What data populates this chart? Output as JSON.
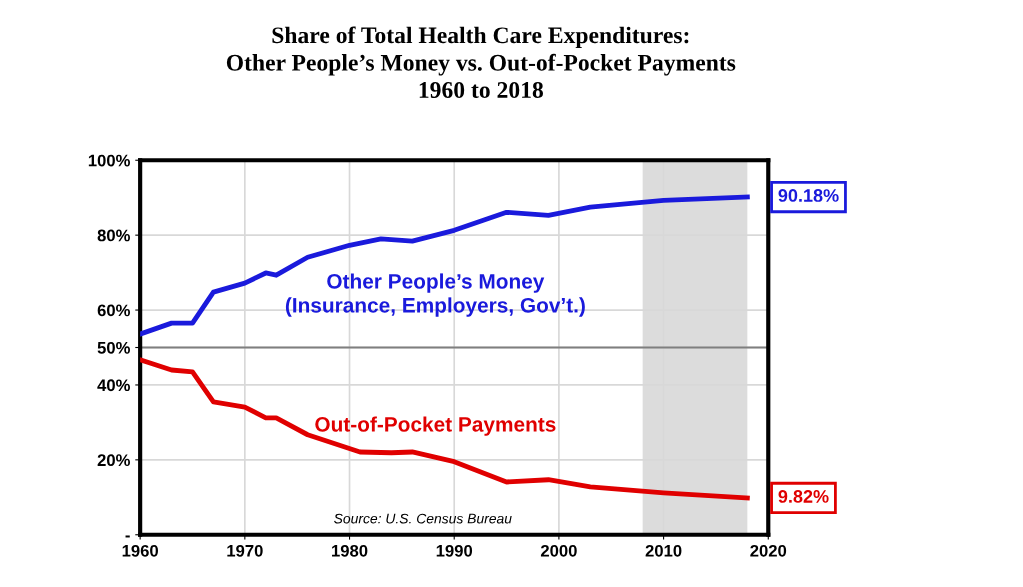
{
  "chart_data": {
    "type": "line",
    "title": "Share of Total Health Care Expenditures:\nOther People’s Money vs. Out-of-Pocket Payments\n1960 to 2018",
    "series": [
      {
        "name": "Other People’s Money\n(Insurance, Employers, Gov’t.)",
        "color": "#1a1adc",
        "x": [
          1960,
          1963,
          1965,
          1967,
          1970,
          1972,
          1973,
          1976,
          1980,
          1983,
          1986,
          1990,
          1995,
          1999,
          2003,
          2010,
          2018
        ],
        "values": [
          53.6,
          56.5,
          56.5,
          64.8,
          67.2,
          69.9,
          69.3,
          74.1,
          77.3,
          79,
          78.4,
          81.3,
          86.1,
          85.3,
          87.5,
          89.3,
          90.18
        ],
        "value_labels": [
          null,
          null,
          null,
          null,
          null,
          null,
          null,
          null,
          null,
          null,
          null,
          null,
          null,
          null,
          null,
          null,
          "90.18%"
        ]
      },
      {
        "name": "Out-of-Pocket Payments",
        "color": "#e00000",
        "x": [
          1960,
          1963,
          1965,
          1967,
          1970,
          1972,
          1973,
          1976,
          1981,
          1984,
          1986,
          1990,
          1995,
          1999,
          2003,
          2010,
          2018
        ],
        "values": [
          46.7,
          44,
          43.5,
          35.5,
          34.1,
          31.2,
          31.2,
          26.7,
          22.1,
          21.9,
          22.1,
          19.5,
          14.1,
          14.7,
          12.8,
          11.2,
          9.82
        ],
        "value_labels": [
          null,
          null,
          null,
          null,
          null,
          null,
          null,
          null,
          null,
          null,
          null,
          null,
          null,
          null,
          null,
          null,
          "9.82%"
        ]
      }
    ],
    "xlim": [
      1960,
      2020
    ],
    "xticks": [
      1960,
      1970,
      1980,
      1990,
      2000,
      2010,
      2020
    ],
    "ylim": [
      0,
      100
    ],
    "yticks": [
      {
        "value": 0,
        "label": "-"
      },
      {
        "value": 20,
        "label": "20%"
      },
      {
        "value": 40,
        "label": "40%"
      },
      {
        "value": 50,
        "label": "50%"
      },
      {
        "value": 60,
        "label": "60%"
      },
      {
        "value": 80,
        "label": "80%"
      },
      {
        "value": 100,
        "label": "100%"
      }
    ],
    "ref_lines": [
      {
        "axis": "y",
        "value": 50,
        "color": "#7f7f7f"
      }
    ],
    "bands": [
      {
        "axis": "x",
        "from": 2008,
        "to": 2018,
        "color": "#dcdcdc"
      }
    ],
    "grid": true,
    "annotations": [
      "Source: U.S. Census Bureau"
    ]
  }
}
